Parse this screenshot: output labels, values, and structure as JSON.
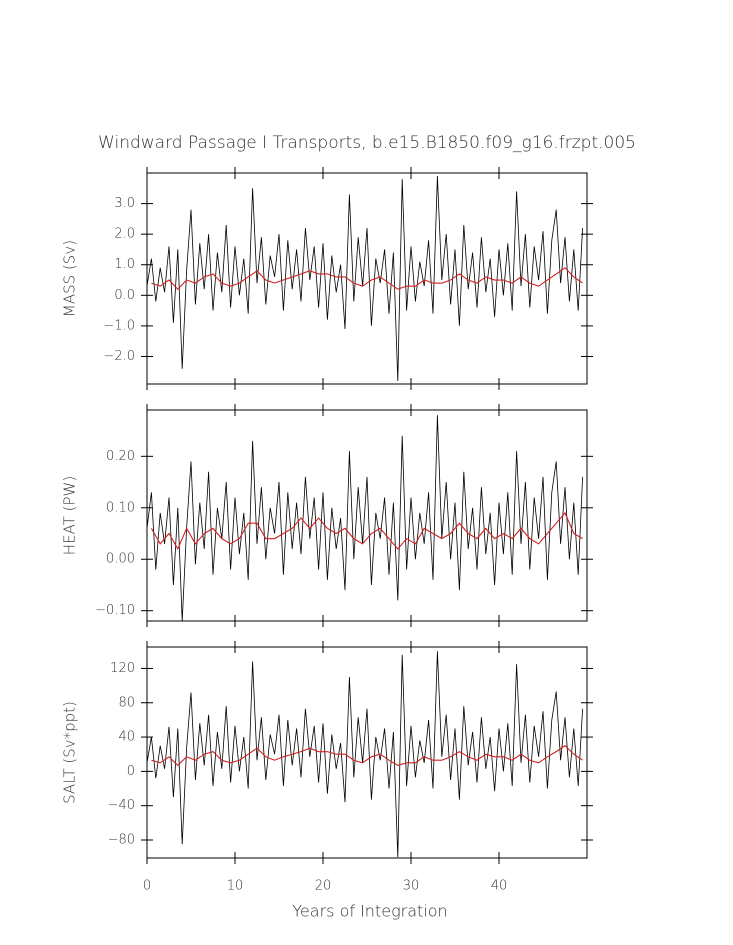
{
  "chart_data": [
    {
      "type": "line",
      "title": "Windward Passage I Transports, b.e15.B1850.f09_g16.frzpt.005",
      "ylabel": "MASS (Sv)",
      "xlim": [
        0,
        50
      ],
      "xticks": [
        0,
        10,
        20,
        30,
        40
      ],
      "ylim": [
        -2.9,
        4.0
      ],
      "yticks": [
        {
          "value": -2,
          "label": "−2.0"
        },
        {
          "value": -1,
          "label": "−1.0"
        },
        {
          "value": 0,
          "label": "0.0"
        },
        {
          "value": 1,
          "label": "1.0"
        },
        {
          "value": 2,
          "label": "2.0"
        },
        {
          "value": 3,
          "label": "3.0"
        }
      ],
      "series": [
        {
          "color": "#000000",
          "x": [
            0,
            0.5,
            1,
            1.5,
            2,
            2.5,
            3,
            3.5,
            4,
            4.5,
            5,
            5.5,
            6,
            6.5,
            7,
            7.5,
            8,
            8.5,
            9,
            9.5,
            10,
            10.5,
            11,
            11.5,
            12,
            12.5,
            13,
            13.5,
            14,
            14.5,
            15,
            15.5,
            16,
            16.5,
            17,
            17.5,
            18,
            18.5,
            19,
            19.5,
            20,
            20.5,
            21,
            21.5,
            22,
            22.5,
            23,
            23.5,
            24,
            24.5,
            25,
            25.5,
            26,
            26.5,
            27,
            27.5,
            28,
            28.5,
            29,
            29.5,
            30,
            30.5,
            31,
            31.5,
            32,
            32.5,
            33,
            33.5,
            34,
            34.5,
            35,
            35.5,
            36,
            36.5,
            37,
            37.5,
            38,
            38.5,
            39,
            39.5,
            40,
            40.5,
            41,
            41.5,
            42,
            42.5,
            43,
            43.5,
            44,
            44.5,
            45,
            45.5,
            46,
            46.5,
            47,
            47.5,
            48,
            48.5,
            49,
            49.5
          ],
          "values": [
            0.3,
            1.2,
            -0.2,
            0.9,
            0.1,
            1.6,
            -0.9,
            1.5,
            -2.4,
            0.8,
            2.8,
            -0.3,
            1.7,
            0.2,
            2.0,
            -0.5,
            1.4,
            0.1,
            2.3,
            -0.4,
            1.6,
            0.0,
            1.2,
            -0.6,
            3.5,
            0.4,
            1.9,
            -0.3,
            1.3,
            0.6,
            2.0,
            -0.5,
            1.8,
            0.2,
            1.5,
            -0.2,
            2.2,
            0.5,
            1.6,
            -0.4,
            1.7,
            -0.8,
            1.3,
            0.1,
            1.0,
            -1.1,
            3.3,
            -0.2,
            1.9,
            0.3,
            2.2,
            -1.0,
            1.2,
            0.4,
            1.5,
            -0.6,
            1.4,
            -2.8,
            3.8,
            -0.5,
            1.6,
            -0.2,
            1.1,
            0.3,
            1.8,
            -0.6,
            3.9,
            0.5,
            2.0,
            -0.3,
            1.5,
            -1.0,
            2.3,
            0.2,
            1.4,
            -0.4,
            1.9,
            0.1,
            1.2,
            -0.7,
            1.5,
            0.0,
            1.7,
            -0.5,
            3.4,
            0.3,
            2.0,
            -0.4,
            1.6,
            0.5,
            2.1,
            -0.6,
            1.8,
            2.8,
            0.4,
            1.9,
            -0.2,
            1.5,
            -0.5,
            2.2
          ]
        },
        {
          "color": "#d02020",
          "x": [
            0.5,
            1.5,
            2.5,
            3.5,
            4.5,
            5.5,
            6.5,
            7.5,
            8.5,
            9.5,
            10.5,
            11.5,
            12.5,
            13.5,
            14.5,
            15.5,
            16.5,
            17.5,
            18.5,
            19.5,
            20.5,
            21.5,
            22.5,
            23.5,
            24.5,
            25.5,
            26.5,
            27.5,
            28.5,
            29.5,
            30.5,
            31.5,
            32.5,
            33.5,
            34.5,
            35.5,
            36.5,
            37.5,
            38.5,
            39.5,
            40.5,
            41.5,
            42.5,
            43.5,
            44.5,
            45.5,
            46.5,
            47.5,
            48.5,
            49.5
          ],
          "values": [
            0.4,
            0.3,
            0.5,
            0.2,
            0.5,
            0.4,
            0.6,
            0.7,
            0.4,
            0.3,
            0.4,
            0.6,
            0.8,
            0.5,
            0.4,
            0.5,
            0.6,
            0.7,
            0.8,
            0.7,
            0.7,
            0.6,
            0.6,
            0.4,
            0.3,
            0.5,
            0.6,
            0.4,
            0.2,
            0.3,
            0.3,
            0.5,
            0.4,
            0.4,
            0.5,
            0.7,
            0.5,
            0.4,
            0.6,
            0.5,
            0.5,
            0.4,
            0.6,
            0.4,
            0.3,
            0.5,
            0.7,
            0.9,
            0.6,
            0.4
          ]
        }
      ]
    },
    {
      "type": "line",
      "ylabel": "HEAT (PW)",
      "xlim": [
        0,
        50
      ],
      "xticks": [
        0,
        10,
        20,
        30,
        40
      ],
      "ylim": [
        -0.12,
        0.29
      ],
      "yticks": [
        {
          "value": -0.1,
          "label": "−0.10"
        },
        {
          "value": 0,
          "label": "0.00"
        },
        {
          "value": 0.1,
          "label": "0.10"
        },
        {
          "value": 0.2,
          "label": "0.20"
        }
      ],
      "series": [
        {
          "color": "#000000",
          "x": [
            0,
            0.5,
            1,
            1.5,
            2,
            2.5,
            3,
            3.5,
            4,
            4.5,
            5,
            5.5,
            6,
            6.5,
            7,
            7.5,
            8,
            8.5,
            9,
            9.5,
            10,
            10.5,
            11,
            11.5,
            12,
            12.5,
            13,
            13.5,
            14,
            14.5,
            15,
            15.5,
            16,
            16.5,
            17,
            17.5,
            18,
            18.5,
            19,
            19.5,
            20,
            20.5,
            21,
            21.5,
            22,
            22.5,
            23,
            23.5,
            24,
            24.5,
            25,
            25.5,
            26,
            26.5,
            27,
            27.5,
            28,
            28.5,
            29,
            29.5,
            30,
            30.5,
            31,
            31.5,
            32,
            32.5,
            33,
            33.5,
            34,
            34.5,
            35,
            35.5,
            36,
            36.5,
            37,
            37.5,
            38,
            38.5,
            39,
            39.5,
            40,
            40.5,
            41,
            41.5,
            42,
            42.5,
            43,
            43.5,
            44,
            44.5,
            45,
            45.5,
            46,
            46.5,
            47,
            47.5,
            48,
            48.5,
            49,
            49.5
          ],
          "values": [
            0.06,
            0.13,
            -0.02,
            0.09,
            0.03,
            0.12,
            -0.05,
            0.1,
            -0.12,
            0.06,
            0.19,
            -0.01,
            0.11,
            0.02,
            0.17,
            -0.03,
            0.1,
            0.04,
            0.15,
            -0.02,
            0.12,
            0.01,
            0.09,
            -0.04,
            0.23,
            0.03,
            0.14,
            0.0,
            0.1,
            0.05,
            0.15,
            -0.03,
            0.13,
            0.02,
            0.11,
            0.01,
            0.16,
            0.04,
            0.12,
            -0.02,
            0.13,
            -0.04,
            0.1,
            0.02,
            0.08,
            -0.06,
            0.21,
            0.0,
            0.14,
            0.03,
            0.16,
            -0.05,
            0.09,
            0.04,
            0.12,
            -0.03,
            0.11,
            -0.08,
            0.24,
            -0.02,
            0.12,
            0.0,
            0.09,
            0.03,
            0.13,
            -0.04,
            0.28,
            0.04,
            0.15,
            0.0,
            0.11,
            -0.06,
            0.17,
            0.02,
            0.1,
            -0.02,
            0.14,
            0.01,
            0.09,
            -0.05,
            0.11,
            0.01,
            0.13,
            -0.03,
            0.21,
            0.03,
            0.15,
            -0.02,
            0.12,
            0.04,
            0.16,
            -0.04,
            0.13,
            0.19,
            0.03,
            0.14,
            0.0,
            0.11,
            -0.03,
            0.16
          ]
        },
        {
          "color": "#d02020",
          "x": [
            0.5,
            1.5,
            2.5,
            3.5,
            4.5,
            5.5,
            6.5,
            7.5,
            8.5,
            9.5,
            10.5,
            11.5,
            12.5,
            13.5,
            14.5,
            15.5,
            16.5,
            17.5,
            18.5,
            19.5,
            20.5,
            21.5,
            22.5,
            23.5,
            24.5,
            25.5,
            26.5,
            27.5,
            28.5,
            29.5,
            30.5,
            31.5,
            32.5,
            33.5,
            34.5,
            35.5,
            36.5,
            37.5,
            38.5,
            39.5,
            40.5,
            41.5,
            42.5,
            43.5,
            44.5,
            45.5,
            46.5,
            47.5,
            48.5,
            49.5
          ],
          "values": [
            0.06,
            0.03,
            0.05,
            0.02,
            0.06,
            0.03,
            0.05,
            0.06,
            0.04,
            0.03,
            0.04,
            0.07,
            0.07,
            0.04,
            0.04,
            0.05,
            0.06,
            0.08,
            0.06,
            0.08,
            0.06,
            0.05,
            0.06,
            0.04,
            0.03,
            0.05,
            0.06,
            0.04,
            0.02,
            0.04,
            0.03,
            0.06,
            0.05,
            0.04,
            0.05,
            0.07,
            0.05,
            0.04,
            0.06,
            0.04,
            0.05,
            0.04,
            0.06,
            0.04,
            0.03,
            0.05,
            0.07,
            0.09,
            0.05,
            0.04
          ]
        }
      ]
    },
    {
      "type": "line",
      "ylabel": "SALT (Sv*ppt)",
      "xlabel": "Years of Integration",
      "xlim": [
        0,
        50
      ],
      "xticks": [
        0,
        10,
        20,
        30,
        40
      ],
      "ylim": [
        -101,
        145
      ],
      "yticks": [
        {
          "value": -80,
          "label": "−80"
        },
        {
          "value": -40,
          "label": "−40"
        },
        0,
        40,
        80,
        120
      ],
      "series": [
        {
          "color": "#000000",
          "x": [
            0,
            0.5,
            1,
            1.5,
            2,
            2.5,
            3,
            3.5,
            4,
            4.5,
            5,
            5.5,
            6,
            6.5,
            7,
            7.5,
            8,
            8.5,
            9,
            9.5,
            10,
            10.5,
            11,
            11.5,
            12,
            12.5,
            13,
            13.5,
            14,
            14.5,
            15,
            15.5,
            16,
            16.5,
            17,
            17.5,
            18,
            18.5,
            19,
            19.5,
            20,
            20.5,
            21,
            21.5,
            22,
            22.5,
            23,
            23.5,
            24,
            24.5,
            25,
            25.5,
            26,
            26.5,
            27,
            27.5,
            28,
            28.5,
            29,
            29.5,
            30,
            30.5,
            31,
            31.5,
            32,
            32.5,
            33,
            33.5,
            34,
            34.5,
            35,
            35.5,
            36,
            36.5,
            37,
            37.5,
            38,
            38.5,
            39,
            39.5,
            40,
            40.5,
            41,
            41.5,
            42,
            42.5,
            43,
            43.5,
            44,
            44.5,
            45,
            45.5,
            46,
            46.5,
            47,
            47.5,
            48,
            48.5,
            49,
            49.5
          ],
          "values": [
            10,
            40,
            -8,
            30,
            3,
            52,
            -30,
            50,
            -85,
            27,
            92,
            -10,
            56,
            7,
            66,
            -17,
            46,
            3,
            76,
            -13,
            53,
            0,
            40,
            -20,
            128,
            13,
            63,
            -10,
            43,
            20,
            66,
            -17,
            60,
            7,
            50,
            -7,
            73,
            17,
            53,
            -13,
            56,
            -26,
            43,
            3,
            33,
            -36,
            110,
            -7,
            63,
            10,
            73,
            -33,
            40,
            13,
            50,
            -20,
            46,
            -100,
            136,
            -17,
            53,
            -7,
            36,
            10,
            60,
            -20,
            140,
            17,
            66,
            -10,
            50,
            -33,
            76,
            7,
            46,
            -13,
            63,
            3,
            40,
            -23,
            50,
            0,
            56,
            -17,
            125,
            10,
            66,
            -13,
            53,
            17,
            70,
            -20,
            60,
            93,
            13,
            63,
            -7,
            50,
            -17,
            73
          ]
        },
        {
          "color": "#d02020",
          "x": [
            0.5,
            1.5,
            2.5,
            3.5,
            4.5,
            5.5,
            6.5,
            7.5,
            8.5,
            9.5,
            10.5,
            11.5,
            12.5,
            13.5,
            14.5,
            15.5,
            16.5,
            17.5,
            18.5,
            19.5,
            20.5,
            21.5,
            22.5,
            23.5,
            24.5,
            25.5,
            26.5,
            27.5,
            28.5,
            29.5,
            30.5,
            31.5,
            32.5,
            33.5,
            34.5,
            35.5,
            36.5,
            37.5,
            38.5,
            39.5,
            40.5,
            41.5,
            42.5,
            43.5,
            44.5,
            45.5,
            46.5,
            47.5,
            48.5,
            49.5
          ],
          "values": [
            13,
            10,
            17,
            7,
            17,
            13,
            20,
            23,
            13,
            10,
            13,
            20,
            27,
            17,
            13,
            17,
            20,
            23,
            27,
            23,
            23,
            20,
            20,
            13,
            10,
            17,
            20,
            13,
            7,
            10,
            10,
            17,
            13,
            13,
            17,
            23,
            17,
            13,
            20,
            17,
            17,
            13,
            20,
            13,
            10,
            17,
            23,
            30,
            20,
            13
          ]
        }
      ]
    }
  ]
}
